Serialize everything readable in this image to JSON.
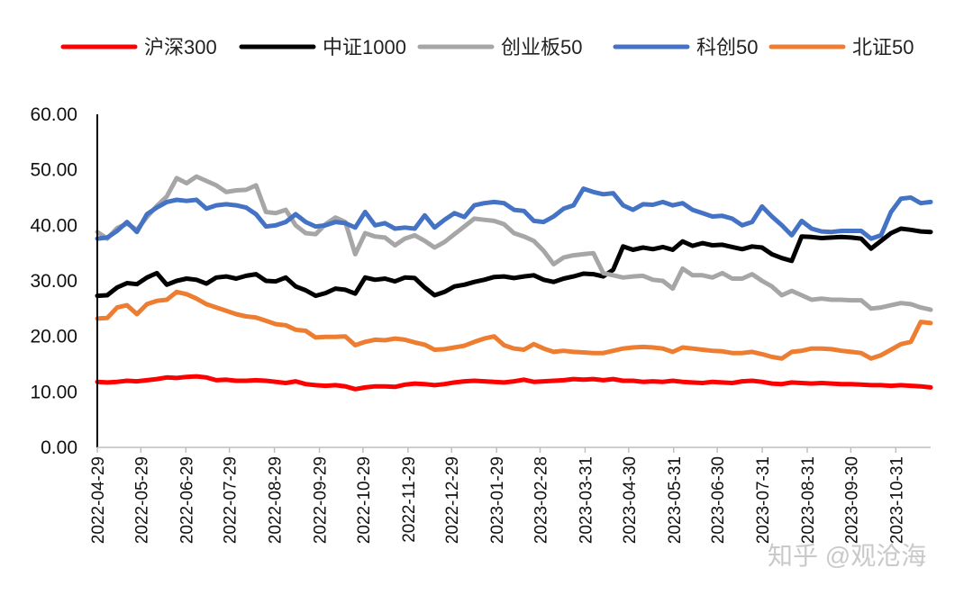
{
  "chart_data": {
    "type": "line",
    "title": "",
    "xlabel": "",
    "ylabel": "",
    "ylim": [
      0,
      60
    ],
    "yticks": [
      "0.00",
      "10.00",
      "20.00",
      "30.00",
      "40.00",
      "50.00",
      "60.00"
    ],
    "x_tick_labels": [
      "2022-04-29",
      "2022-05-29",
      "2022-06-29",
      "2022-07-29",
      "2022-08-29",
      "2022-09-29",
      "2022-10-29",
      "2022-11-29",
      "2022-12-29",
      "2023-01-29",
      "2023-02-28",
      "2023-03-31",
      "2023-04-30",
      "2023-05-31",
      "2023-06-30",
      "2023-07-31",
      "2023-08-31",
      "2023-09-30",
      "2023-10-31"
    ],
    "x_range": [
      "2022-04-29",
      "2023-11-24"
    ],
    "grid": false,
    "legend_position": "top",
    "watermark": "知乎 @观沧海",
    "series": [
      {
        "name": "沪深300",
        "color": "#ff0000",
        "values": [
          11.8,
          11.7,
          11.8,
          12.0,
          11.9,
          12.1,
          12.3,
          12.6,
          12.5,
          12.7,
          12.8,
          12.6,
          12.1,
          12.2,
          12.0,
          12.0,
          12.1,
          12.0,
          11.8,
          11.6,
          11.9,
          11.4,
          11.2,
          11.1,
          11.2,
          11.0,
          10.5,
          10.8,
          11.0,
          11.0,
          10.9,
          11.3,
          11.5,
          11.4,
          11.2,
          11.4,
          11.7,
          11.9,
          12.0,
          11.9,
          11.8,
          11.7,
          11.9,
          12.2,
          11.8,
          11.9,
          12.0,
          12.1,
          12.3,
          12.2,
          12.3,
          12.1,
          12.3,
          12.0,
          12.0,
          11.8,
          11.9,
          11.8,
          12.0,
          11.8,
          11.7,
          11.6,
          11.8,
          11.7,
          11.6,
          11.9,
          12.0,
          11.8,
          11.5,
          11.4,
          11.7,
          11.6,
          11.5,
          11.6,
          11.5,
          11.4,
          11.4,
          11.3,
          11.2,
          11.2,
          11.1,
          11.2,
          11.1,
          11.0,
          10.8
        ]
      },
      {
        "name": "中证1000",
        "color": "#000000",
        "values": [
          27.3,
          27.4,
          28.8,
          29.6,
          29.4,
          30.6,
          31.4,
          29.3,
          30.0,
          30.4,
          30.2,
          29.5,
          30.6,
          30.8,
          30.4,
          30.9,
          31.2,
          30.0,
          29.9,
          30.6,
          29.0,
          28.3,
          27.3,
          27.8,
          28.6,
          28.4,
          27.7,
          30.6,
          30.2,
          30.4,
          29.9,
          30.6,
          30.5,
          28.8,
          27.4,
          28.0,
          29.0,
          29.3,
          29.8,
          30.2,
          30.7,
          30.8,
          30.5,
          30.8,
          31.0,
          30.2,
          29.8,
          30.4,
          30.8,
          31.3,
          31.2,
          30.8,
          32.0,
          36.2,
          35.6,
          36.0,
          35.7,
          36.1,
          35.6,
          37.1,
          36.3,
          36.8,
          36.4,
          36.5,
          36.1,
          35.7,
          36.2,
          36.0,
          34.8,
          34.1,
          33.6,
          38.0,
          37.9,
          37.7,
          37.8,
          37.9,
          37.8,
          37.6,
          35.8,
          37.2,
          38.6,
          39.4,
          39.2,
          38.9,
          38.8
        ]
      },
      {
        "name": "创业板50",
        "color": "#a6a6a6",
        "values": [
          38.8,
          37.6,
          39.5,
          40.3,
          39.2,
          41.5,
          43.5,
          45.2,
          48.5,
          47.6,
          48.8,
          48.0,
          47.2,
          46.0,
          46.3,
          46.4,
          47.2,
          42.4,
          42.2,
          42.8,
          40.0,
          38.6,
          38.4,
          40.2,
          41.4,
          40.6,
          34.8,
          38.6,
          38.0,
          37.8,
          36.4,
          37.6,
          38.2,
          37.2,
          36.0,
          37.0,
          38.4,
          39.8,
          41.2,
          41.0,
          40.8,
          40.2,
          38.6,
          38.0,
          37.2,
          35.4,
          33.0,
          34.2,
          34.6,
          34.8,
          35.0,
          31.4,
          31.0,
          30.6,
          30.8,
          30.9,
          30.2,
          30.0,
          28.6,
          32.2,
          31.0,
          31.0,
          30.6,
          31.4,
          30.4,
          30.4,
          31.2,
          30.0,
          29.0,
          27.4,
          28.2,
          27.4,
          26.6,
          26.8,
          26.6,
          26.6,
          26.5,
          26.5,
          25.0,
          25.2,
          25.6,
          26.0,
          25.8,
          25.2,
          24.8
        ]
      },
      {
        "name": "科创50",
        "color": "#4472c4",
        "values": [
          37.6,
          37.8,
          39.0,
          40.6,
          38.8,
          42.0,
          43.2,
          44.2,
          44.6,
          44.4,
          44.6,
          43.0,
          43.6,
          43.8,
          43.6,
          43.2,
          42.0,
          39.8,
          40.0,
          40.6,
          42.0,
          40.6,
          39.8,
          40.0,
          40.6,
          40.4,
          39.6,
          42.4,
          40.0,
          40.4,
          39.4,
          39.6,
          39.4,
          41.8,
          39.6,
          41.0,
          42.2,
          41.5,
          43.6,
          44.0,
          44.2,
          44.0,
          42.8,
          42.6,
          40.8,
          40.6,
          41.6,
          43.0,
          43.6,
          46.6,
          46.0,
          45.6,
          45.8,
          43.6,
          42.8,
          43.8,
          43.7,
          44.2,
          43.6,
          44.0,
          42.8,
          42.2,
          41.6,
          41.7,
          41.2,
          40.0,
          40.6,
          43.4,
          41.6,
          40.0,
          38.2,
          40.8,
          39.4,
          38.9,
          38.8,
          39.0,
          39.0,
          39.0,
          37.6,
          38.2,
          42.4,
          44.8,
          45.0,
          44.0,
          44.2
        ]
      },
      {
        "name": "北证50",
        "color": "#ed7d31",
        "values": [
          23.2,
          23.3,
          25.2,
          25.6,
          24.0,
          25.8,
          26.4,
          26.6,
          28.0,
          27.6,
          26.8,
          25.8,
          25.2,
          24.6,
          24.0,
          23.6,
          23.4,
          22.8,
          22.2,
          22.0,
          21.2,
          21.0,
          19.8,
          19.9,
          19.9,
          20.0,
          18.4,
          19.0,
          19.4,
          19.3,
          19.6,
          19.4,
          18.9,
          18.5,
          17.6,
          17.7,
          18.0,
          18.3,
          19.0,
          19.6,
          20.0,
          18.4,
          17.8,
          17.6,
          18.6,
          17.8,
          17.2,
          17.4,
          17.2,
          17.1,
          17.0,
          17.0,
          17.4,
          17.8,
          18.0,
          18.1,
          18.0,
          17.8,
          17.2,
          18.0,
          17.8,
          17.6,
          17.4,
          17.3,
          17.0,
          17.0,
          17.2,
          16.8,
          16.3,
          16.0,
          17.2,
          17.4,
          17.8,
          17.8,
          17.7,
          17.4,
          17.2,
          17.0,
          16.0,
          16.6,
          17.6,
          18.6,
          19.0,
          22.6,
          22.4
        ]
      }
    ]
  }
}
